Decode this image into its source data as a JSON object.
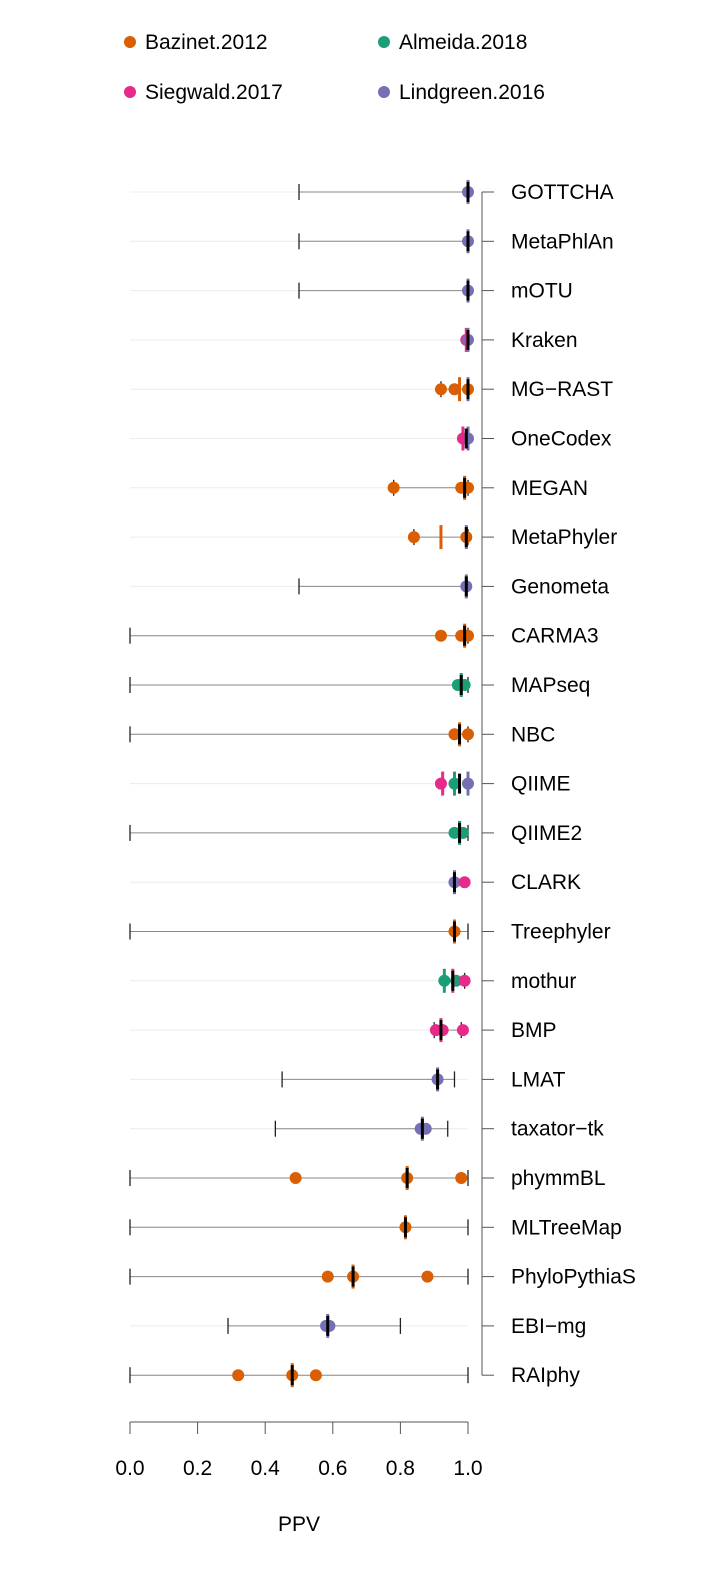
{
  "chart_data": {
    "type": "scatter",
    "xlabel": "PPV",
    "xlim": [
      0,
      1
    ],
    "x_ticks": [
      "0.0",
      "0.2",
      "0.4",
      "0.6",
      "0.8",
      "1.0"
    ],
    "x_tick_values": [
      0,
      0.2,
      0.4,
      0.6,
      0.8,
      1.0
    ],
    "legend_position": "top",
    "series": [
      {
        "name": "Bazinet.2012",
        "color": "#d95f02"
      },
      {
        "name": "Almeida.2018",
        "color": "#1b9e77"
      },
      {
        "name": "Siegwald.2017",
        "color": "#e7298a"
      },
      {
        "name": "Lindgreen.2016",
        "color": "#7570b3"
      }
    ],
    "tools": [
      {
        "name": "GOTTCHA",
        "median": 1.0,
        "whisker": [
          0.5,
          1.0
        ],
        "points": [
          {
            "s": 3,
            "x": 1.0
          }
        ],
        "medians": [
          {
            "s": 3,
            "x": 1.0
          }
        ]
      },
      {
        "name": "MetaPhlAn",
        "median": 1.0,
        "whisker": [
          0.5,
          1.0
        ],
        "points": [
          {
            "s": 3,
            "x": 1.0
          }
        ],
        "medians": [
          {
            "s": 3,
            "x": 1.0
          }
        ]
      },
      {
        "name": "mOTU",
        "median": 1.0,
        "whisker": [
          0.5,
          1.0
        ],
        "points": [
          {
            "s": 3,
            "x": 1.0
          }
        ],
        "medians": [
          {
            "s": 3,
            "x": 1.0
          }
        ]
      },
      {
        "name": "Kraken",
        "median": 1.0,
        "whisker": null,
        "points": [
          {
            "s": 2,
            "x": 0.995
          },
          {
            "s": 3,
            "x": 1.0
          }
        ],
        "medians": [
          {
            "s": 2,
            "x": 0.995
          },
          {
            "s": 3,
            "x": 1.0
          }
        ]
      },
      {
        "name": "MG−RAST",
        "median": 1.0,
        "whisker": [
          0.92,
          1.0
        ],
        "points": [
          {
            "s": 0,
            "x": 0.92
          },
          {
            "s": 0,
            "x": 0.96
          },
          {
            "s": 0,
            "x": 1.0
          }
        ],
        "medians": [
          {
            "s": 0,
            "x": 0.975
          },
          {
            "s": 3,
            "x": 1.0
          }
        ]
      },
      {
        "name": "OneCodex",
        "median": 0.995,
        "whisker": null,
        "points": [
          {
            "s": 2,
            "x": 0.985
          },
          {
            "s": 3,
            "x": 1.0
          }
        ],
        "medians": [
          {
            "s": 2,
            "x": 0.985
          },
          {
            "s": 3,
            "x": 1.0
          }
        ]
      },
      {
        "name": "MEGAN",
        "median": 0.99,
        "whisker": [
          0.78,
          1.0
        ],
        "points": [
          {
            "s": 0,
            "x": 0.78
          },
          {
            "s": 0,
            "x": 0.98
          },
          {
            "s": 0,
            "x": 1.0
          }
        ],
        "medians": [
          {
            "s": 0,
            "x": 0.99
          }
        ]
      },
      {
        "name": "MetaPhyler",
        "median": 0.995,
        "whisker": [
          0.84,
          1.0
        ],
        "points": [
          {
            "s": 0,
            "x": 0.84
          },
          {
            "s": 0,
            "x": 0.995
          }
        ],
        "medians": [
          {
            "s": 0,
            "x": 0.92
          },
          {
            "s": 3,
            "x": 0.995
          }
        ]
      },
      {
        "name": "Genometa",
        "median": 0.995,
        "whisker": [
          0.5,
          0.995
        ],
        "points": [
          {
            "s": 3,
            "x": 0.995
          }
        ],
        "medians": [
          {
            "s": 3,
            "x": 0.995
          }
        ]
      },
      {
        "name": "CARMA3",
        "median": 0.99,
        "whisker": [
          0.0,
          1.0
        ],
        "points": [
          {
            "s": 0,
            "x": 0.92
          },
          {
            "s": 0,
            "x": 0.98
          },
          {
            "s": 0,
            "x": 1.0
          }
        ],
        "medians": [
          {
            "s": 0,
            "x": 0.99
          }
        ]
      },
      {
        "name": "MAPseq",
        "median": 0.98,
        "whisker": [
          0.0,
          1.0
        ],
        "points": [
          {
            "s": 1,
            "x": 0.97
          },
          {
            "s": 1,
            "x": 0.99
          }
        ],
        "medians": [
          {
            "s": 1,
            "x": 0.98
          }
        ]
      },
      {
        "name": "NBC",
        "median": 0.975,
        "whisker": [
          0.0,
          1.0
        ],
        "points": [
          {
            "s": 0,
            "x": 0.96
          },
          {
            "s": 0,
            "x": 1.0
          }
        ],
        "medians": [
          {
            "s": 0,
            "x": 0.975
          }
        ]
      },
      {
        "name": "QIIME",
        "median": 0.975,
        "whisker": null,
        "points": [
          {
            "s": 2,
            "x": 0.92
          },
          {
            "s": 1,
            "x": 0.96
          },
          {
            "s": 3,
            "x": 1.0
          }
        ],
        "medians": [
          {
            "s": 2,
            "x": 0.925
          },
          {
            "s": 1,
            "x": 0.96
          },
          {
            "s": 3,
            "x": 1.0
          }
        ]
      },
      {
        "name": "QIIME2",
        "median": 0.975,
        "whisker": [
          0.0,
          1.0
        ],
        "points": [
          {
            "s": 1,
            "x": 0.96
          },
          {
            "s": 1,
            "x": 0.985
          }
        ],
        "medians": [
          {
            "s": 1,
            "x": 0.975
          }
        ]
      },
      {
        "name": "CLARK",
        "median": 0.96,
        "whisker": null,
        "points": [
          {
            "s": 3,
            "x": 0.96
          },
          {
            "s": 2,
            "x": 0.99
          }
        ],
        "medians": [
          {
            "s": 3,
            "x": 0.96
          }
        ]
      },
      {
        "name": "Treephyler",
        "median": 0.96,
        "whisker": [
          0.0,
          1.0
        ],
        "points": [
          {
            "s": 0,
            "x": 0.96
          }
        ],
        "medians": [
          {
            "s": 0,
            "x": 0.96
          }
        ]
      },
      {
        "name": "mothur",
        "median": 0.955,
        "whisker": [
          0.93,
          0.99
        ],
        "points": [
          {
            "s": 1,
            "x": 0.93
          },
          {
            "s": 1,
            "x": 0.965
          },
          {
            "s": 2,
            "x": 0.99
          }
        ],
        "medians": [
          {
            "s": 1,
            "x": 0.93
          },
          {
            "s": 2,
            "x": 0.955
          }
        ]
      },
      {
        "name": "BMP",
        "median": 0.92,
        "whisker": [
          0.9,
          0.98
        ],
        "points": [
          {
            "s": 2,
            "x": 0.905
          },
          {
            "s": 2,
            "x": 0.925
          },
          {
            "s": 2,
            "x": 0.985
          }
        ],
        "medians": [
          {
            "s": 2,
            "x": 0.92
          }
        ]
      },
      {
        "name": "LMAT",
        "median": 0.91,
        "whisker": [
          0.45,
          0.96
        ],
        "points": [
          {
            "s": 3,
            "x": 0.91
          }
        ],
        "medians": [
          {
            "s": 3,
            "x": 0.91
          }
        ]
      },
      {
        "name": "taxator−tk",
        "median": 0.865,
        "whisker": [
          0.43,
          0.94
        ],
        "points": [
          {
            "s": 3,
            "x": 0.86
          },
          {
            "s": 3,
            "x": 0.875
          }
        ],
        "medians": [
          {
            "s": 3,
            "x": 0.865
          }
        ]
      },
      {
        "name": "phymmBL",
        "median": 0.82,
        "whisker": [
          0.0,
          1.0
        ],
        "points": [
          {
            "s": 0,
            "x": 0.49
          },
          {
            "s": 0,
            "x": 0.82
          },
          {
            "s": 0,
            "x": 0.98
          }
        ],
        "medians": [
          {
            "s": 0,
            "x": 0.82
          }
        ]
      },
      {
        "name": "MLTreeMap",
        "median": 0.815,
        "whisker": [
          0.0,
          1.0
        ],
        "points": [
          {
            "s": 0,
            "x": 0.815
          }
        ],
        "medians": [
          {
            "s": 0,
            "x": 0.815
          }
        ]
      },
      {
        "name": "PhyloPythiaS",
        "median": 0.66,
        "whisker": [
          0.0,
          1.0
        ],
        "points": [
          {
            "s": 0,
            "x": 0.585
          },
          {
            "s": 0,
            "x": 0.66
          },
          {
            "s": 0,
            "x": 0.88
          }
        ],
        "medians": [
          {
            "s": 0,
            "x": 0.66
          }
        ]
      },
      {
        "name": "EBI−mg",
        "median": 0.585,
        "whisker": [
          0.29,
          0.8
        ],
        "points": [
          {
            "s": 3,
            "x": 0.58
          },
          {
            "s": 3,
            "x": 0.59
          }
        ],
        "medians": [
          {
            "s": 3,
            "x": 0.585
          }
        ]
      },
      {
        "name": "RAIphy",
        "median": 0.48,
        "whisker": [
          0.0,
          1.0
        ],
        "points": [
          {
            "s": 0,
            "x": 0.32
          },
          {
            "s": 0,
            "x": 0.48
          },
          {
            "s": 0,
            "x": 0.55
          }
        ],
        "medians": [
          {
            "s": 0,
            "x": 0.48
          }
        ]
      }
    ]
  }
}
